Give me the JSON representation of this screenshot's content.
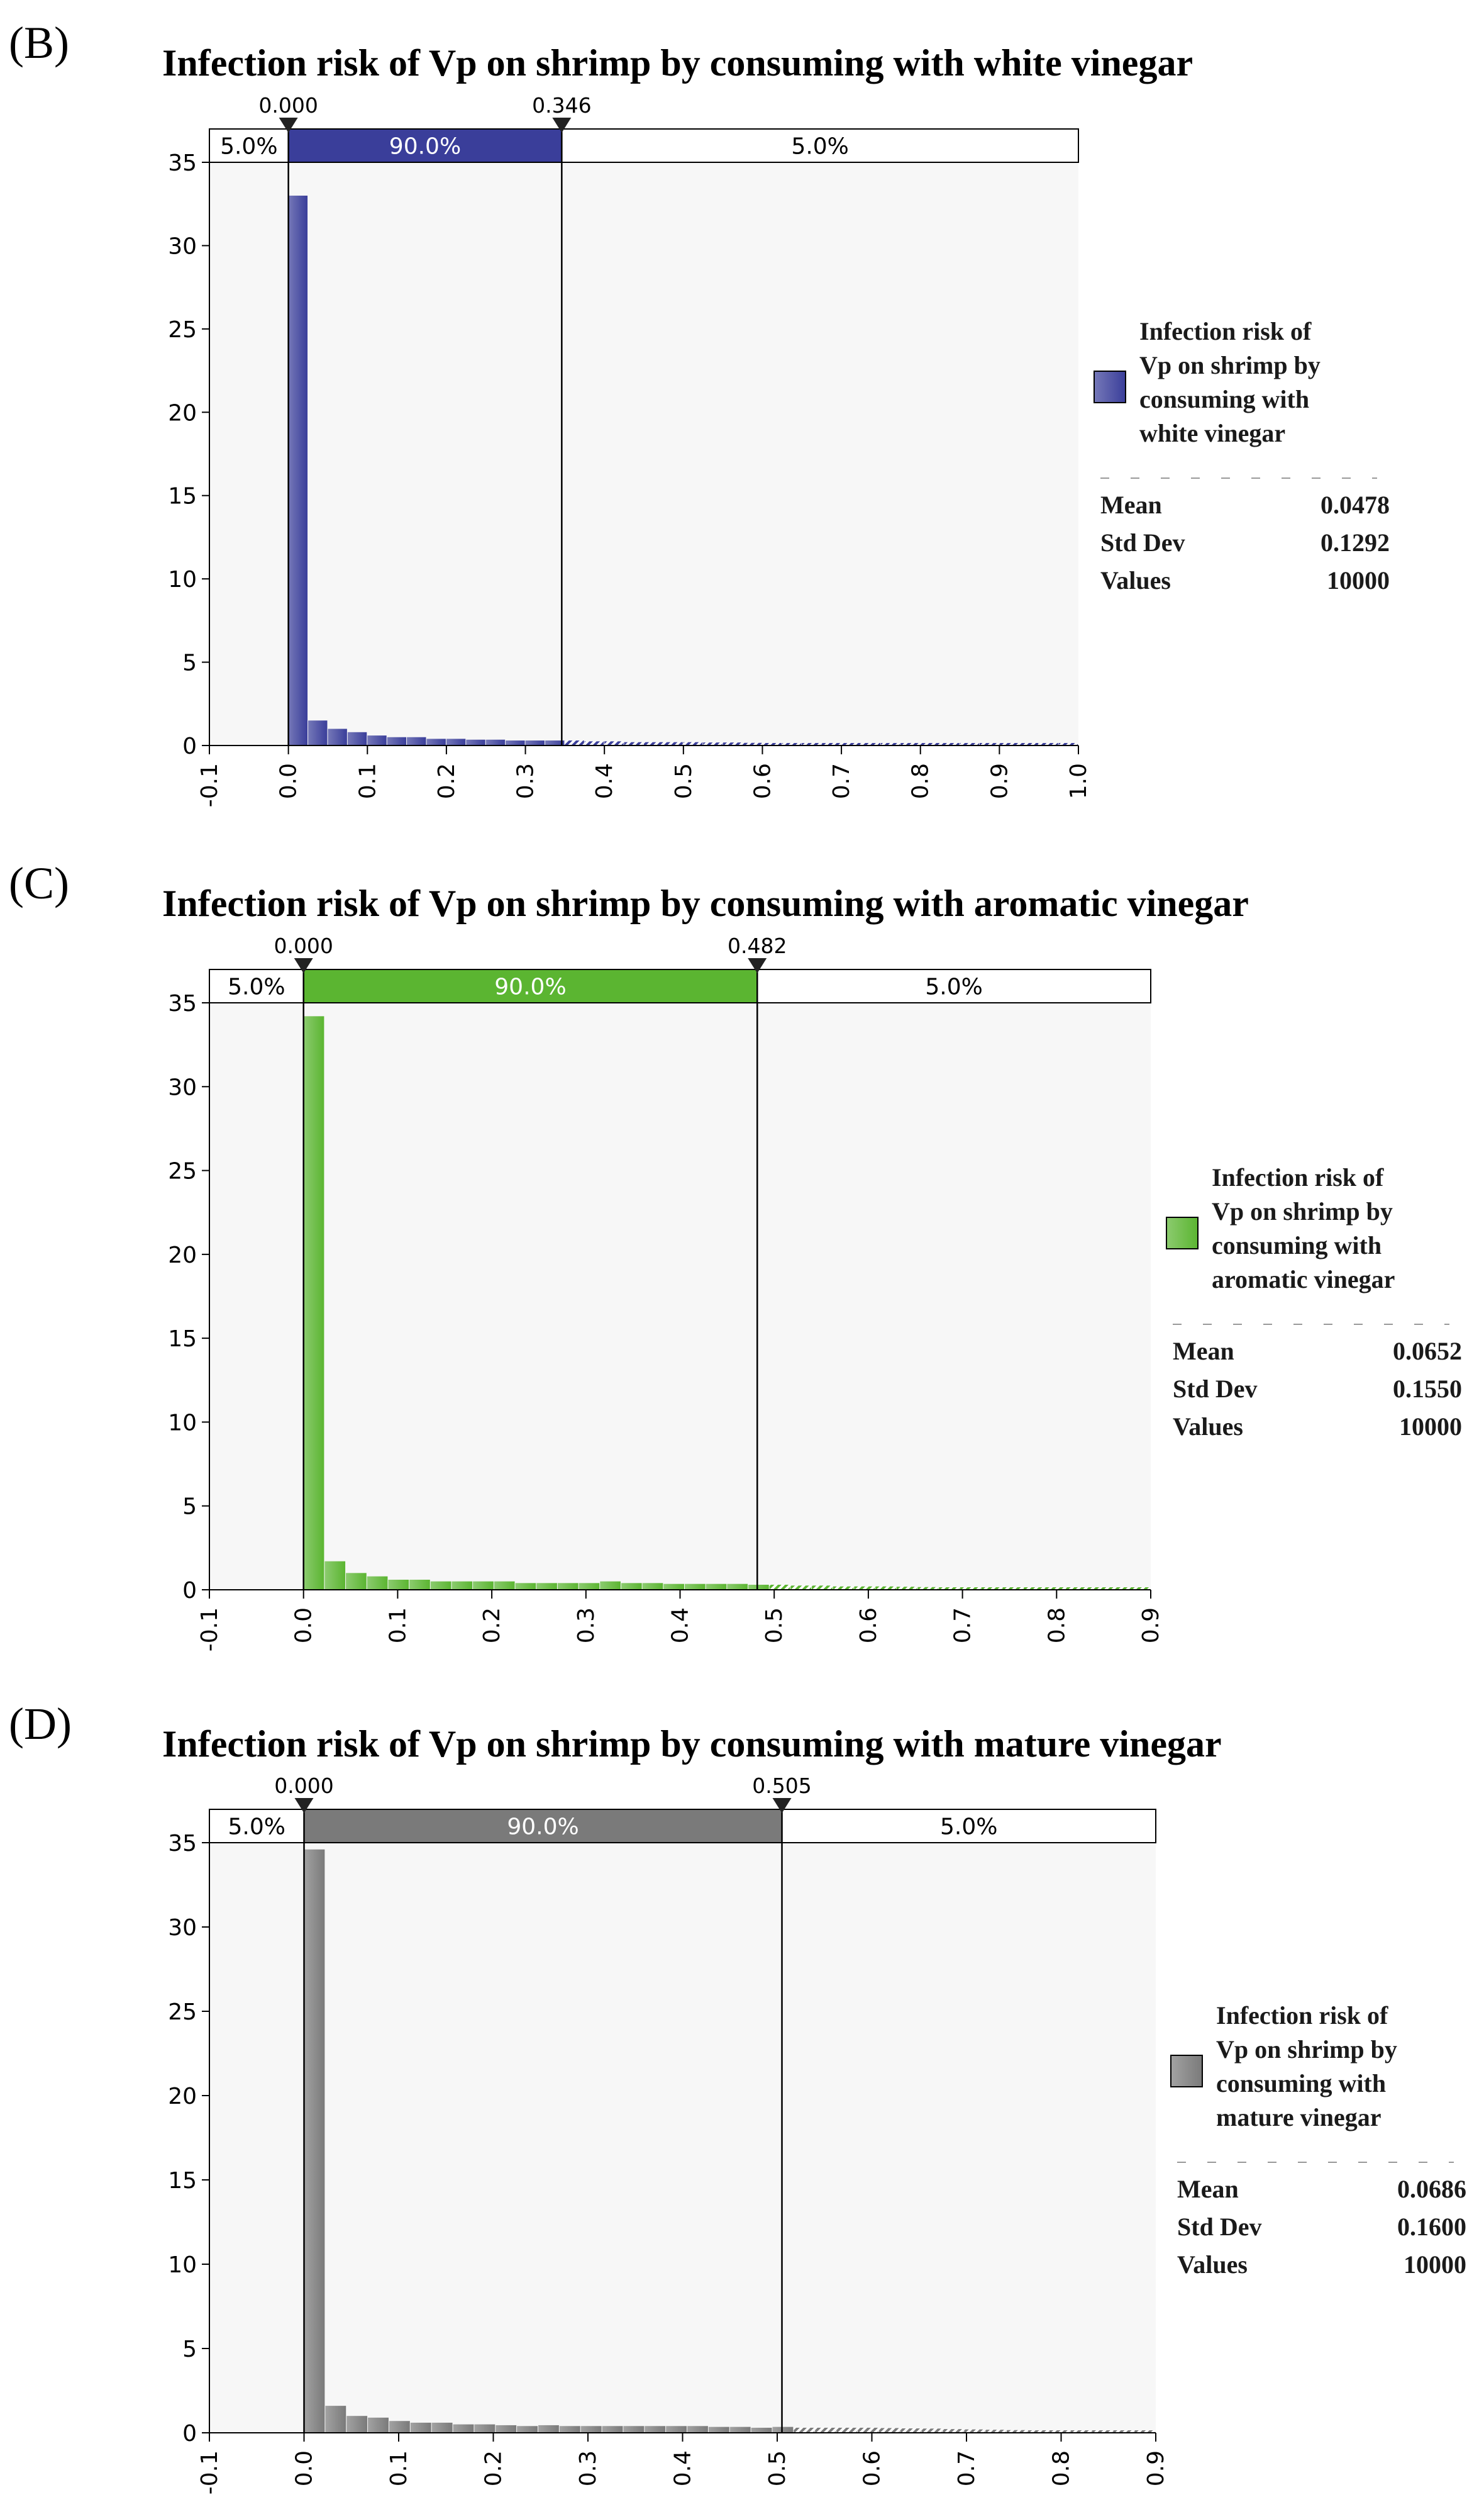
{
  "chart_data": [
    {
      "type": "bar",
      "panel": "(B)",
      "title": "Infection risk of Vp on shrimp by consuming with white vinegar",
      "color": "#3a3e9a",
      "y_ticks": [
        "0",
        "5",
        "10",
        "15",
        "20",
        "25",
        "30",
        "35"
      ],
      "x_ticks": [
        "-0.1",
        "0.0",
        "0.1",
        "0.2",
        "0.3",
        "0.4",
        "0.5",
        "0.6",
        "0.7",
        "0.8",
        "0.9",
        "1.0"
      ],
      "xlim": [
        -0.1,
        1.0
      ],
      "ylim": [
        0,
        35
      ],
      "bin_width": 0.025,
      "bins_start": 0.0,
      "values": [
        33,
        1.5,
        1.0,
        0.8,
        0.6,
        0.5,
        0.5,
        0.4,
        0.4,
        0.35,
        0.35,
        0.3,
        0.3,
        0.3,
        0.3,
        0.25,
        0.25,
        0.2,
        0.2,
        0.2,
        0.2,
        0.18,
        0.18,
        0.16,
        0.15,
        0.15,
        0.14,
        0.13,
        0.12,
        0.12,
        0.11,
        0.1,
        0.1,
        0.1,
        0.1,
        0.1,
        0.1,
        0.1,
        0.1,
        0.1
      ],
      "markers": {
        "left": 0.0,
        "left_label": "0.000",
        "right": 0.346,
        "right_label": "0.346"
      },
      "band": {
        "left_pct": "5.0%",
        "mid_pct": "90.0%",
        "right_pct": "5.0%"
      },
      "legend": {
        "lines": [
          "Infection risk of",
          "Vp on shrimp by",
          "consuming with",
          "white vinegar"
        ]
      },
      "stats": [
        {
          "label": "Mean",
          "value": "0.0478"
        },
        {
          "label": "Std Dev",
          "value": "0.1292"
        },
        {
          "label": "Values",
          "value": "10000"
        }
      ]
    },
    {
      "type": "bar",
      "panel": "(C)",
      "title": "Infection risk of Vp on shrimp by consuming with aromatic vinegar",
      "color": "#5bb531",
      "y_ticks": [
        "0",
        "5",
        "10",
        "15",
        "20",
        "25",
        "30",
        "35"
      ],
      "x_ticks": [
        "-0.1",
        "0.0",
        "0.1",
        "0.2",
        "0.3",
        "0.4",
        "0.5",
        "0.6",
        "0.7",
        "0.8",
        "0.9"
      ],
      "xlim": [
        -0.1,
        0.9
      ],
      "ylim": [
        0,
        35
      ],
      "bin_width": 0.0225,
      "bins_start": 0.0,
      "values": [
        34.2,
        1.7,
        1.0,
        0.8,
        0.6,
        0.6,
        0.5,
        0.5,
        0.5,
        0.5,
        0.4,
        0.4,
        0.4,
        0.4,
        0.5,
        0.4,
        0.4,
        0.35,
        0.35,
        0.35,
        0.35,
        0.3,
        0.3,
        0.25,
        0.25,
        0.2,
        0.2,
        0.2,
        0.18,
        0.16,
        0.15,
        0.14,
        0.12,
        0.12,
        0.1,
        0.1,
        0.1,
        0.1,
        0.1,
        0.1
      ],
      "markers": {
        "left": 0.0,
        "left_label": "0.000",
        "right": 0.482,
        "right_label": "0.482"
      },
      "band": {
        "left_pct": "5.0%",
        "mid_pct": "90.0%",
        "right_pct": "5.0%"
      },
      "legend": {
        "lines": [
          "Infection risk of",
          "Vp on shrimp by",
          "consuming with",
          "aromatic vinegar"
        ]
      },
      "stats": [
        {
          "label": "Mean",
          "value": "0.0652"
        },
        {
          "label": "Std Dev",
          "value": "0.1550"
        },
        {
          "label": "Values",
          "value": "10000"
        }
      ]
    },
    {
      "type": "bar",
      "panel": "(D)",
      "title": "Infection risk of Vp on shrimp by consuming with mature vinegar",
      "color": "#7a7a7a",
      "y_ticks": [
        "0",
        "5",
        "10",
        "15",
        "20",
        "25",
        "30",
        "35"
      ],
      "x_ticks": [
        "-0.1",
        "0.0",
        "0.1",
        "0.2",
        "0.3",
        "0.4",
        "0.5",
        "0.6",
        "0.7",
        "0.8",
        "0.9"
      ],
      "xlim": [
        -0.1,
        0.9
      ],
      "ylim": [
        0,
        35
      ],
      "bin_width": 0.0225,
      "bins_start": 0.0,
      "values": [
        34.6,
        1.6,
        1.0,
        0.9,
        0.7,
        0.6,
        0.6,
        0.5,
        0.5,
        0.45,
        0.4,
        0.45,
        0.4,
        0.4,
        0.4,
        0.4,
        0.4,
        0.4,
        0.4,
        0.35,
        0.35,
        0.3,
        0.35,
        0.3,
        0.3,
        0.3,
        0.3,
        0.28,
        0.26,
        0.25,
        0.22,
        0.2,
        0.18,
        0.16,
        0.15,
        0.14,
        0.12,
        0.1,
        0.1,
        0.1
      ],
      "markers": {
        "left": 0.0,
        "left_label": "0.000",
        "right": 0.505,
        "right_label": "0.505"
      },
      "band": {
        "left_pct": "5.0%",
        "mid_pct": "90.0%",
        "right_pct": "5.0%"
      },
      "legend": {
        "lines": [
          "Infection risk of",
          "Vp on shrimp by",
          "consuming with",
          "mature vinegar"
        ]
      },
      "stats": [
        {
          "label": "Mean",
          "value": "0.0686"
        },
        {
          "label": "Std Dev",
          "value": "0.1600"
        },
        {
          "label": "Values",
          "value": "10000"
        }
      ]
    }
  ]
}
